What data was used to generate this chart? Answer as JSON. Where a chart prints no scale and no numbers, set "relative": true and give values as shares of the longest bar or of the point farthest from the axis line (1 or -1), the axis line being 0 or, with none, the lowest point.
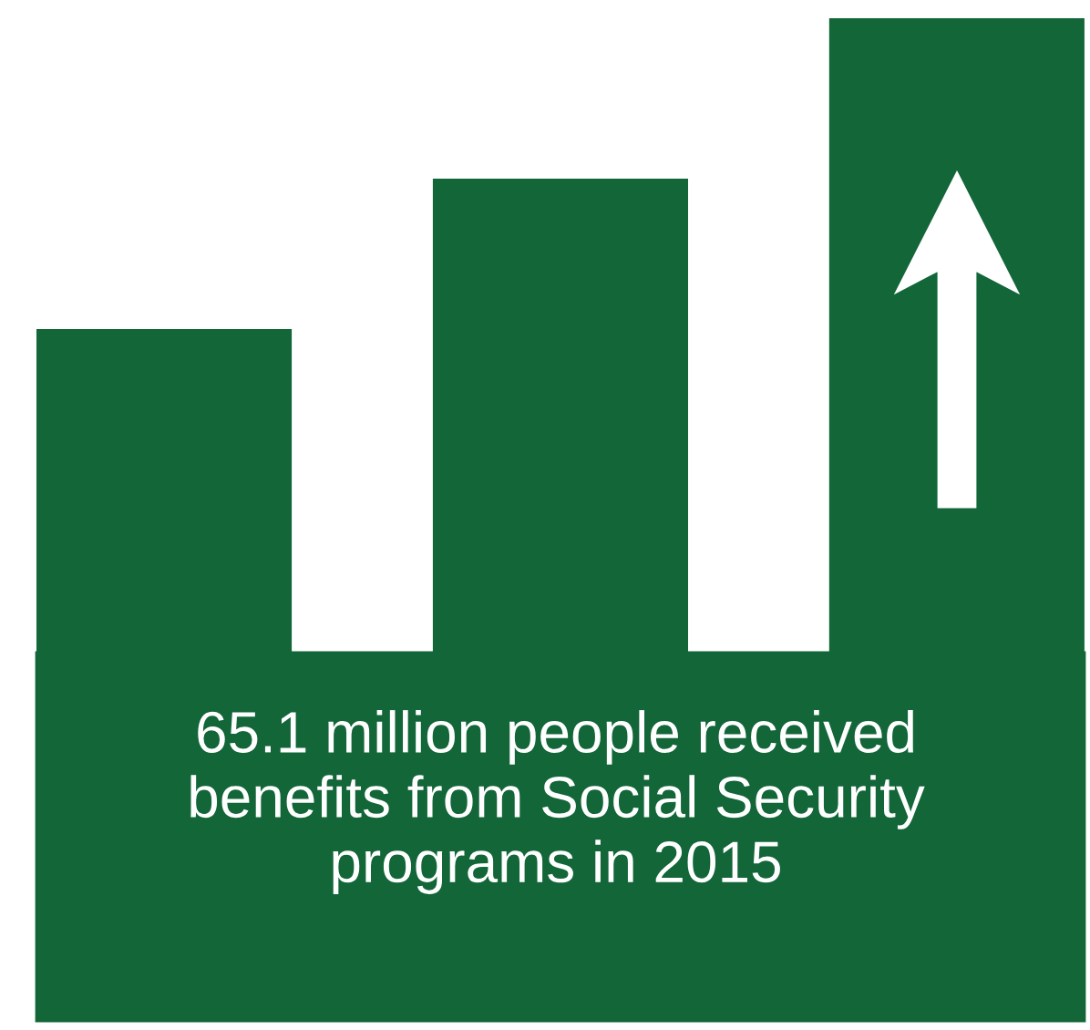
{
  "chart_data": {
    "type": "bar",
    "relative": true,
    "categories": [
      null,
      null,
      null
    ],
    "values": [
      0.69,
      0.84,
      1
    ],
    "color": "#126638",
    "annotations": [
      "65.1 million people received\nbenefits from Social Security\nprograms in 2015"
    ]
  }
}
